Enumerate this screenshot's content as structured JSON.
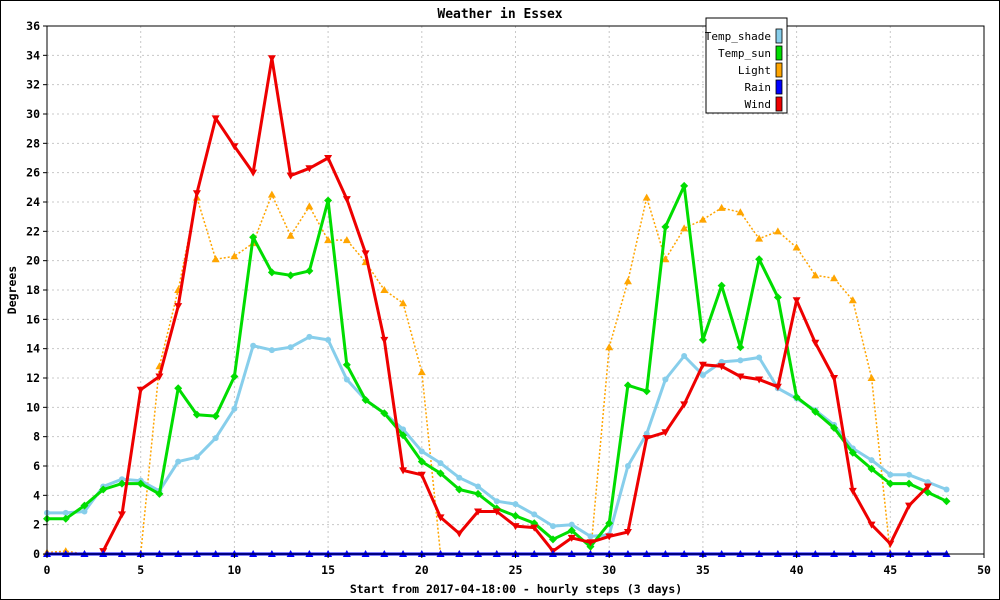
{
  "chart_data": {
    "type": "line",
    "title": "Weather in Essex",
    "xlabel": "Start from 2017-04-18:00 - hourly steps (3 days)",
    "ylabel": "Degrees",
    "xlim": [
      0,
      50
    ],
    "ylim": [
      0,
      36
    ],
    "xticks": [
      0,
      5,
      10,
      15,
      20,
      25,
      30,
      35,
      40,
      45,
      50
    ],
    "yticks": [
      0,
      2,
      4,
      6,
      8,
      10,
      12,
      14,
      16,
      18,
      20,
      22,
      24,
      26,
      28,
      30,
      32,
      34,
      36
    ],
    "grid": true,
    "legend_position": "top-right",
    "series": [
      {
        "name": "Temp_shade",
        "color": "#87ceeb",
        "marker": "circle",
        "line": "solid-thick",
        "x": [
          0,
          1,
          2,
          3,
          4,
          5,
          6,
          7,
          8,
          9,
          10,
          11,
          12,
          13,
          14,
          15,
          16,
          17,
          18,
          19,
          20,
          21,
          22,
          23,
          24,
          25,
          26,
          27,
          28,
          29,
          30,
          31,
          32,
          33,
          34,
          35,
          36,
          37,
          38,
          39,
          40,
          41,
          42,
          43,
          44,
          45,
          46,
          47,
          48
        ],
        "values": [
          2.8,
          2.8,
          2.9,
          4.6,
          5.1,
          5.0,
          4.3,
          6.3,
          6.6,
          7.9,
          9.9,
          14.2,
          13.9,
          14.1,
          14.8,
          14.6,
          11.9,
          10.5,
          9.6,
          8.5,
          7.0,
          6.2,
          5.2,
          4.6,
          3.6,
          3.4,
          2.7,
          1.9,
          2.0,
          1.2,
          1.3,
          6.0,
          8.2,
          11.9,
          13.5,
          12.2,
          13.1,
          13.2,
          13.4,
          11.3,
          10.6,
          9.8,
          8.8,
          7.2,
          6.4,
          5.4,
          5.4,
          4.9,
          4.4
        ]
      },
      {
        "name": "Temp_sun",
        "color": "#00dd00",
        "marker": "diamond",
        "line": "solid-thick",
        "x": [
          0,
          1,
          2,
          3,
          4,
          5,
          6,
          7,
          8,
          9,
          10,
          11,
          12,
          13,
          14,
          15,
          16,
          17,
          18,
          19,
          20,
          21,
          22,
          23,
          24,
          25,
          26,
          27,
          28,
          29,
          30,
          31,
          32,
          33,
          34,
          35,
          36,
          37,
          38,
          39,
          40,
          41,
          42,
          43,
          44,
          45,
          46,
          47,
          48
        ],
        "values": [
          2.4,
          2.4,
          3.3,
          4.4,
          4.8,
          4.8,
          4.1,
          11.3,
          9.5,
          9.4,
          12.1,
          21.6,
          19.2,
          19.0,
          19.3,
          24.1,
          12.9,
          10.5,
          9.6,
          8.1,
          6.3,
          5.5,
          4.4,
          4.1,
          3.1,
          2.6,
          2.1,
          1.0,
          1.6,
          0.5,
          2.1,
          11.5,
          11.1,
          22.3,
          25.1,
          14.6,
          18.3,
          14.1,
          20.1,
          17.5,
          10.7,
          9.7,
          8.6,
          6.9,
          5.8,
          4.8,
          4.8,
          4.2,
          3.6
        ]
      },
      {
        "name": "Light",
        "color": "#ffa500",
        "marker": "triangle-up",
        "line": "dotted",
        "x": [
          0,
          1,
          2,
          3,
          4,
          5,
          6,
          7,
          8,
          9,
          10,
          11,
          12,
          13,
          14,
          15,
          16,
          17,
          18,
          19,
          20,
          21,
          22,
          23,
          24,
          25,
          26,
          27,
          28,
          29,
          30,
          31,
          32,
          33,
          34,
          35,
          36,
          37,
          38,
          39,
          40,
          41,
          42,
          43,
          44,
          45,
          46,
          47,
          48
        ],
        "values": [
          0.1,
          0.2,
          0,
          0,
          0,
          0,
          12.8,
          18.0,
          24.3,
          20.1,
          20.3,
          21.2,
          24.5,
          21.7,
          23.7,
          21.4,
          21.4,
          19.9,
          18.0,
          17.1,
          12.4,
          0,
          0,
          0,
          0,
          0,
          0,
          0,
          0,
          0,
          14.1,
          18.6,
          24.3,
          20.1,
          22.2,
          22.8,
          23.6,
          23.3,
          21.5,
          22.0,
          20.9,
          19.0,
          18.8,
          17.3,
          12.0,
          0,
          0,
          0,
          0
        ]
      },
      {
        "name": "Rain",
        "color": "#0000ff",
        "marker": "triangle-up",
        "line": "solid-thick",
        "x": [
          0,
          1,
          2,
          3,
          4,
          5,
          6,
          7,
          8,
          9,
          10,
          11,
          12,
          13,
          14,
          15,
          16,
          17,
          18,
          19,
          20,
          21,
          22,
          23,
          24,
          25,
          26,
          27,
          28,
          29,
          30,
          31,
          32,
          33,
          34,
          35,
          36,
          37,
          38,
          39,
          40,
          41,
          42,
          43,
          44,
          45,
          46,
          47,
          48
        ],
        "values": [
          0,
          0,
          0,
          0,
          0,
          0,
          0,
          0,
          0,
          0,
          0,
          0,
          0,
          0,
          0,
          0,
          0,
          0,
          0,
          0,
          0,
          0,
          0,
          0,
          0,
          0,
          0,
          0,
          0,
          0,
          0,
          0,
          0,
          0,
          0,
          0,
          0,
          0,
          0,
          0,
          0,
          0,
          0,
          0,
          0,
          0,
          0,
          0,
          0
        ]
      },
      {
        "name": "Wind",
        "color": "#ee0000",
        "marker": "triangle-down",
        "line": "solid-thick",
        "x": [
          3,
          4,
          5,
          6,
          7,
          8,
          9,
          10,
          11,
          12,
          13,
          14,
          15,
          16,
          17,
          18,
          19,
          20,
          21,
          22,
          23,
          24,
          25,
          26,
          27,
          28,
          29,
          30,
          31,
          32,
          33,
          34,
          35,
          36,
          37,
          38,
          39,
          40,
          41,
          42,
          43,
          44,
          45,
          46,
          47
        ],
        "values": [
          0.2,
          2.7,
          11.2,
          12.1,
          16.9,
          24.6,
          29.7,
          27.8,
          26.0,
          33.8,
          25.8,
          26.3,
          27.0,
          24.2,
          20.5,
          14.6,
          5.7,
          5.4,
          2.5,
          1.4,
          2.9,
          2.9,
          1.9,
          1.8,
          0.2,
          1.1,
          0.8,
          1.2,
          1.5,
          7.9,
          8.3,
          10.2,
          12.9,
          12.8,
          12.1,
          11.9,
          11.4,
          17.3,
          14.4,
          12.0,
          4.3,
          2.0,
          0.7,
          3.3,
          4.6
        ]
      }
    ]
  }
}
